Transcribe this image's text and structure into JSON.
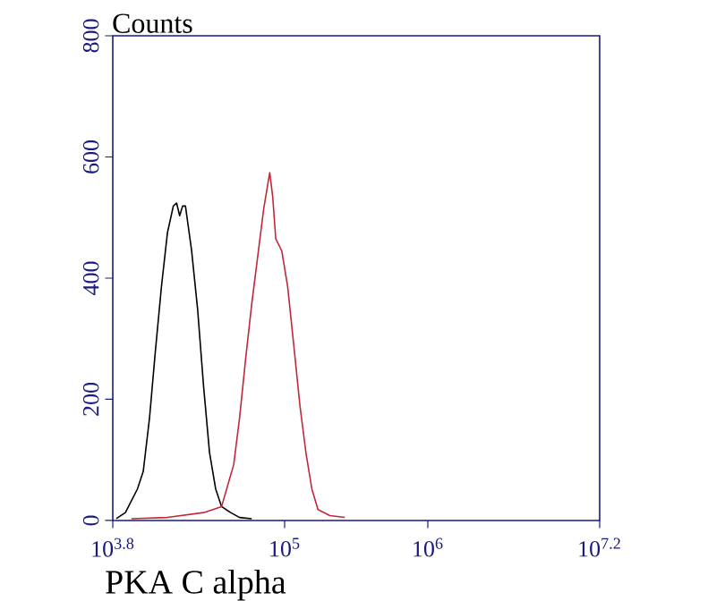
{
  "chart_data": {
    "type": "line",
    "ylabel": "Counts",
    "xlabel": "PKA C alpha",
    "log": "x",
    "xlim": [
      6310,
      15850000
    ],
    "xticks": [
      {
        "value": 6310,
        "label": "10$^{3.8}$"
      },
      {
        "value": 100000,
        "label": "10$^{5}$"
      },
      {
        "value": 1000000,
        "label": "10$^{6}$"
      },
      {
        "value": 15850000,
        "label": "10$^{7.2}$"
      }
    ],
    "ylim": [
      0,
      800
    ],
    "yticks": [
      0,
      200,
      400,
      600,
      800
    ],
    "grid": false,
    "series": [
      {
        "color": "#000000",
        "x": [
          6680,
          7730,
          9380,
          10300,
          11400,
          12500,
          13800,
          15200,
          16700,
          17600,
          18500,
          19400,
          20300,
          22400,
          24700,
          27200,
          29900,
          33000,
          36300,
          42000,
          48500,
          58900
        ],
        "values": [
          3,
          13,
          52,
          81,
          170,
          278,
          386,
          475,
          519,
          524,
          503,
          519,
          519,
          446,
          348,
          220,
          112,
          52,
          23,
          13,
          5,
          3
        ]
      },
      {
        "color": "#c0283a",
        "x": [
          8510,
          15200,
          27200,
          36300,
          44100,
          48500,
          53500,
          58900,
          64900,
          71500,
          78700,
          82600,
          86700,
          95500,
          105000,
          116000,
          128000,
          141000,
          155000,
          171000,
          207000,
          263000
        ],
        "values": [
          3,
          5,
          13,
          23,
          92,
          170,
          268,
          357,
          436,
          515,
          574,
          534,
          465,
          445,
          386,
          288,
          189,
          111,
          52,
          18,
          8,
          5
        ]
      }
    ]
  }
}
